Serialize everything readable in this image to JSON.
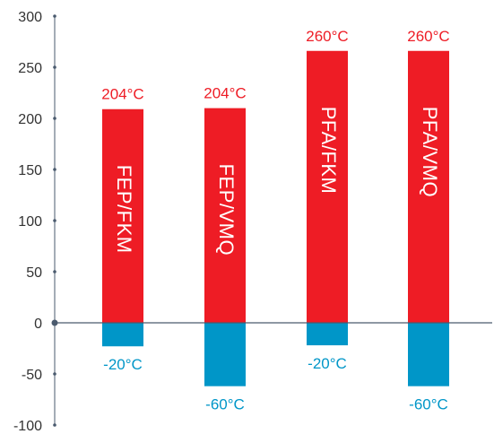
{
  "chart_data": {
    "type": "bar",
    "categories": [
      "FEP/FKM",
      "FEP/VMQ",
      "PFA/FKM",
      "PFA/VMQ"
    ],
    "series": [
      {
        "values": [
          209,
          210,
          266,
          266
        ]
      },
      {
        "values": [
          -23,
          -62,
          -22,
          -62
        ]
      }
    ],
    "max_labels": [
      "204°C",
      "204°C",
      "260°C",
      "260°C"
    ],
    "min_labels": [
      "-20°C",
      "-60°C",
      "-20°C",
      "-60°C"
    ],
    "y_ticks": [
      "300",
      "250",
      "200",
      "150",
      "100",
      "50",
      "0",
      "-50",
      "-100"
    ],
    "ylim": [
      -100,
      300
    ],
    "grid": false,
    "colors": {
      "max": "#ee1c25",
      "min": "#0096c8",
      "axis": "#4a5a6e"
    }
  }
}
